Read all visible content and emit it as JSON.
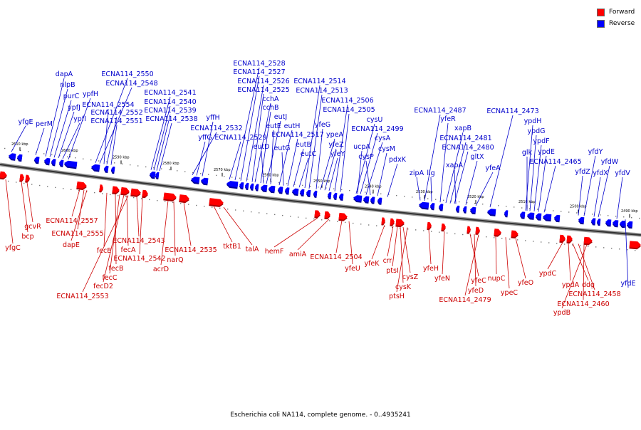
{
  "legend": {
    "items": [
      {
        "label": "Forward",
        "color": "#ff0000"
      },
      {
        "label": "Reverse",
        "color": "#0000ff"
      }
    ]
  },
  "caption": "Escherichia coli NA114, complete genome. - 0..4935241",
  "colors": {
    "forward": "#ff0000",
    "forward_dark": "#a80000",
    "reverse": "#0000ff",
    "reverse_dark": "#00009a",
    "forward_label": "#cc0000",
    "reverse_label": "#0000cc"
  },
  "axis": {
    "ticks": [
      "2610 kbp",
      "2600 kbp",
      "2590 kbp",
      "2580 kbp",
      "2570 kbp",
      "2560 kbp",
      "2550 kbp",
      "2540 kbp",
      "2530 kbp",
      "2520 kbp",
      "2510 kbp",
      "2500 kbp",
      "2490 kbp"
    ]
  },
  "reverse_labels": [
    "yfgE",
    "perM",
    "dapA",
    "nlpB",
    "purC",
    "ypfJ",
    "ypfI",
    "ypfH",
    "ECNA114_2550",
    "ECNA114_2548",
    "ECNA114_2554",
    "ECNA114_2552",
    "ECNA114_2551",
    "ECNA114_2541",
    "ECNA114_2540",
    "ECNA114_2539",
    "ECNA114_2538",
    "yffH",
    "ECNA114_2532",
    "yffG",
    "ECNA114_2529",
    "ECNA114_2528",
    "ECNA114_2527",
    "ECNA114_2526",
    "ECNA114_2525",
    "cchA",
    "cchB",
    "eutJ",
    "eutE",
    "eutD",
    "eutH",
    "eutG",
    "ECNA114_2517",
    "eutB",
    "eutC",
    "ECNA114_2514",
    "ECNA114_2513",
    "yfeG",
    "ypeA",
    "yfeZ",
    "yfeY",
    "ECNA114_2506",
    "ECNA114_2505",
    "cysU",
    "ECNA114_2499",
    "ucpA",
    "cysA",
    "cysP",
    "cysM",
    "pdxK",
    "ECNA114_2487",
    "yfeR",
    "zipA",
    "lig",
    "xapB",
    "ECNA114_2481",
    "ECNA114_2480",
    "xapA",
    "gltX",
    "yfeA",
    "ECNA114_2473",
    "ypdH",
    "ypdG",
    "ypdF",
    "glk",
    "ypdE",
    "ECNA114_2465",
    "yfdY",
    "yfdZ",
    "yfdX",
    "yfdW",
    "yfdV",
    "yfdE"
  ],
  "forward_labels": [
    "yfgC",
    "bcp",
    "gcvR",
    "ECNA114_2557",
    "ECNA114_2555",
    "dapE",
    "fecE",
    "fecB",
    "fecC",
    "fecD2",
    "ECNA114_2553",
    "fecA",
    "ECNA114_2543",
    "ECNA114_2542",
    "narQ",
    "acrD",
    "ECNA114_2535",
    "tktB1",
    "talA",
    "hemF",
    "amiA",
    "ECNA114_2504",
    "yfeU",
    "yfeK",
    "crr",
    "ptsI",
    "cysZ",
    "cysK",
    "ptsH",
    "yfeH",
    "yfeN",
    "yfeC",
    "yfeD",
    "ECNA114_2479",
    "nupC",
    "ypeC",
    "yfeO",
    "ypdC",
    "ypdA",
    "ddg",
    "ECNA114_2458",
    "ECNA114_2460",
    "ypdB"
  ]
}
